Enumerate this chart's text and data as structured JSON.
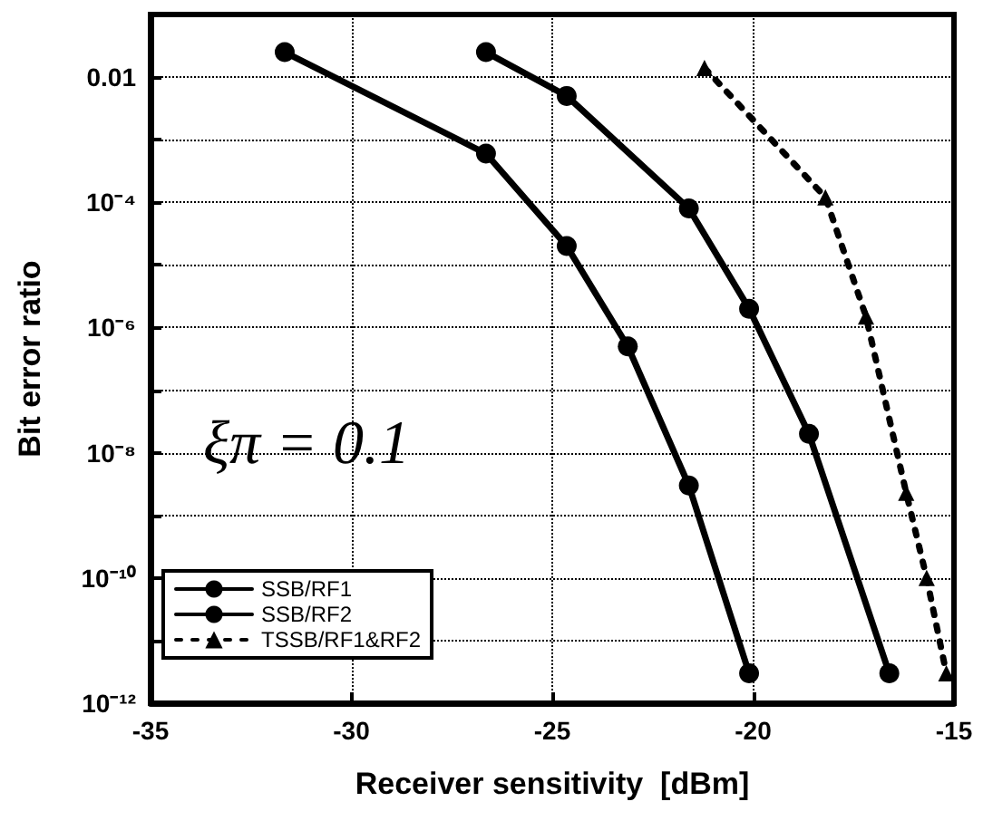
{
  "chart_data": {
    "type": "line",
    "xlabel": "Receiver sensitivity  [dBm]",
    "ylabel": "Bit error ratio",
    "xlim": [
      -35,
      -15
    ],
    "xticks": [
      -35,
      -30,
      -25,
      -20,
      -15
    ],
    "ylim": [
      1e-12,
      0.1
    ],
    "yticks": [
      {
        "value": 1e-12,
        "label": "10⁻¹²"
      },
      {
        "value": 1e-11,
        "label": null
      },
      {
        "value": 1e-10,
        "label": "10⁻¹⁰"
      },
      {
        "value": 1e-09,
        "label": null
      },
      {
        "value": 1e-08,
        "label": "10⁻⁸"
      },
      {
        "value": 1e-07,
        "label": null
      },
      {
        "value": 1e-06,
        "label": "10⁻⁶"
      },
      {
        "value": 1e-05,
        "label": null
      },
      {
        "value": 0.0001,
        "label": "10⁻⁴"
      },
      {
        "value": 0.001,
        "label": null
      },
      {
        "value": 0.01,
        "label": "0.01"
      },
      {
        "value": 0.1,
        "label": null
      }
    ],
    "log": "y",
    "grid": true,
    "legend": "bottom left",
    "annotations": [
      "ξπ = 0.1"
    ],
    "series": [
      {
        "name": "SSB/RF1",
        "color": "#000000",
        "marker": "circle",
        "line_style": "solid",
        "x": [
          -26.65,
          -24.64,
          -21.6,
          -20.1,
          -18.61,
          -16.61
        ],
        "values": [
          0.025,
          0.005,
          8e-05,
          2e-06,
          2e-08,
          3e-12
        ]
      },
      {
        "name": "SSB/RF2",
        "color": "#000000",
        "marker": "circle",
        "line_style": "solid",
        "x": [
          -31.66,
          -26.65,
          -24.64,
          -23.12,
          -21.6,
          -20.1
        ],
        "values": [
          0.025,
          0.0006,
          2e-05,
          5e-07,
          3e-09,
          3e-12
        ]
      },
      {
        "name": "TSSB/RF1&RF2",
        "color": "#000000",
        "marker": "triangle",
        "line_style": "dotted",
        "x": [
          -21.21,
          -18.2,
          -17.19,
          -16.19,
          -15.68,
          -15.19
        ],
        "values": [
          0.014,
          0.00012,
          1.5e-06,
          2.3e-09,
          1e-10,
          3e-12
        ]
      }
    ]
  }
}
